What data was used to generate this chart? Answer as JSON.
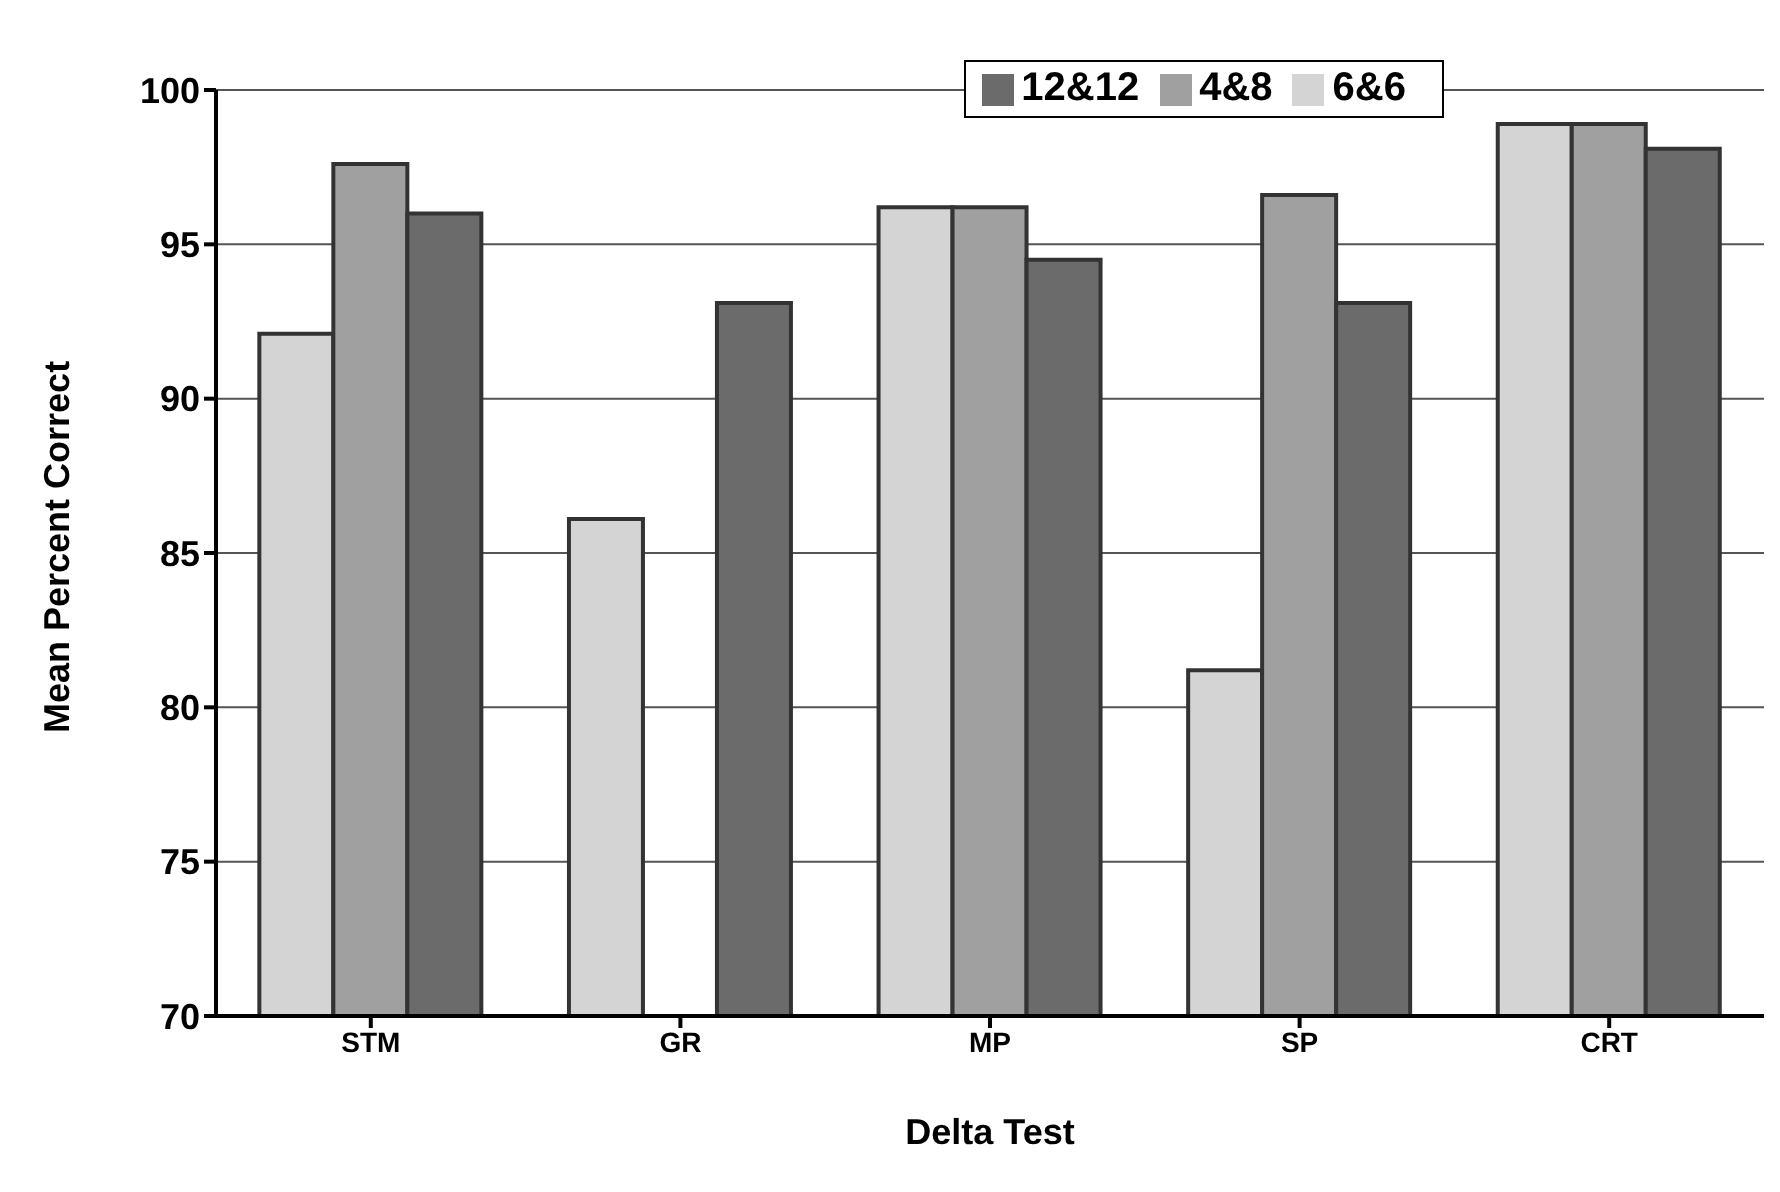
{
  "chart_data": {
    "type": "bar",
    "xlabel": "Delta Test",
    "ylabel": "Mean Percent Correct",
    "categories": [
      "STM",
      "GR",
      "MP",
      "SP",
      "CRT"
    ],
    "series": [
      {
        "name": "6&6",
        "color": "#d4d4d4",
        "values": [
          92.1,
          86.1,
          96.2,
          81.2,
          98.9
        ]
      },
      {
        "name": "4&8",
        "color": "#a0a0a0",
        "values": [
          97.6,
          null,
          96.2,
          96.6,
          98.9
        ]
      },
      {
        "name": "12&12",
        "color": "#6b6b6b",
        "values": [
          96.0,
          93.1,
          94.5,
          93.1,
          98.1
        ]
      }
    ],
    "ylim": [
      70,
      100
    ],
    "yticks": [
      70,
      75,
      80,
      85,
      90,
      95,
      100
    ],
    "grid": "y",
    "legend": "top right"
  }
}
